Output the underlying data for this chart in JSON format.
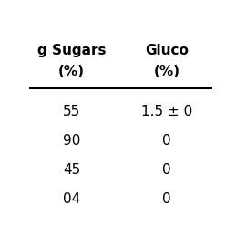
{
  "col_headers_line1": [
    "g Sugars",
    "Gluco"
  ],
  "col_headers_line2": [
    "(%)",
    "(%)"
  ],
  "rows": [
    [
      "55",
      "1.5 ± 0"
    ],
    [
      "90",
      "0"
    ],
    [
      "45",
      "0"
    ],
    [
      "04",
      "0"
    ]
  ],
  "background_color": "#ffffff",
  "font_size": 11,
  "header_font_size": 11
}
